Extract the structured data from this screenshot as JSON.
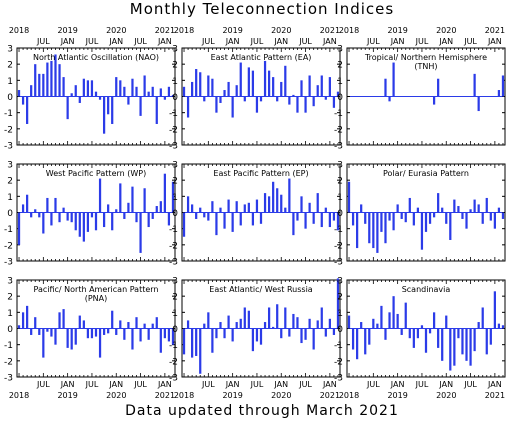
{
  "title": "Monthly Teleconnection Indices",
  "footer": "Data updated through March 2021",
  "colors": {
    "bar": "#2b3be8",
    "axis": "#000000",
    "background": "#ffffff"
  },
  "chart_data": {
    "type": "bar",
    "layout": "3x3 grid of bar charts",
    "ylim": [
      -3,
      3
    ],
    "yticks": [
      -3,
      -2,
      -1,
      0,
      1,
      2,
      3
    ],
    "month_axis": {
      "start": "2018-01",
      "end": "2021-03",
      "count": 39
    },
    "month_tick_labels": [
      "JUL",
      "JAN",
      "JUL",
      "JAN",
      "JUL",
      "JAN",
      "JUL",
      "JAN"
    ],
    "year_labels": [
      "2018",
      "2019",
      "2020",
      "2021"
    ],
    "panels": [
      {
        "name": "North Atlantic Oscillation (NAO)",
        "values": [
          0.4,
          -0.5,
          -1.7,
          0.7,
          2.0,
          1.4,
          1.4,
          2.1,
          2.2,
          2.6,
          2.0,
          1.2,
          -1.4,
          0.2,
          0.7,
          -0.4,
          1.1,
          1.0,
          1.0,
          0.3,
          -0.2,
          -2.3,
          -1.1,
          -1.7,
          1.2,
          1.0,
          0.6,
          -0.5,
          1.1,
          0.6,
          -1.2,
          1.3,
          0.3,
          0.6,
          -1.7,
          0.5,
          -0.2,
          0.6,
          0.1
        ]
      },
      {
        "name": "East Atlantic Pattern (EA)",
        "values": [
          0.6,
          -1.3,
          0.9,
          1.7,
          1.5,
          -0.3,
          1.3,
          1.1,
          -1.0,
          -0.4,
          0.4,
          0.9,
          -1.3,
          0.7,
          2.1,
          -0.3,
          1.8,
          1.6,
          -1.0,
          -0.3,
          2.2,
          1.6,
          1.2,
          -0.3,
          0.9,
          1.9,
          -0.5,
          0.1,
          -1.0,
          1.0,
          -1.0,
          1.3,
          -0.6,
          0.7,
          1.3,
          -0.2,
          1.2,
          -0.7,
          0.3
        ]
      },
      {
        "name": "Tropical/ Northern Hemisphere (TNH)",
        "values": [
          0,
          0,
          0,
          0,
          0,
          0,
          0,
          0,
          0,
          1.1,
          -0.3,
          2.1,
          0,
          0,
          0,
          0,
          0,
          0,
          0,
          0,
          0,
          -0.5,
          1.1,
          0,
          0,
          0,
          0,
          0,
          0,
          0,
          0,
          1.4,
          -0.9,
          0,
          0,
          0,
          0,
          0.4,
          1.3
        ]
      },
      {
        "name": "West Pacific Pattern (WP)",
        "values": [
          -2.0,
          0.5,
          1.1,
          -0.3,
          0.2,
          -0.3,
          -1.3,
          0.9,
          -0.8,
          0.9,
          -0.6,
          0.3,
          -0.5,
          -0.6,
          -1.1,
          -1.5,
          -1.8,
          -1.2,
          -0.3,
          -1.1,
          2.1,
          -0.9,
          0.5,
          -1.1,
          0.2,
          1.8,
          -0.4,
          0.6,
          1.6,
          -0.6,
          -2.5,
          1.5,
          -0.9,
          -0.4,
          0.4,
          0.7,
          2.4,
          -0.8,
          1.9
        ]
      },
      {
        "name": "East Pacific Pattern (EP)",
        "values": [
          -1.5,
          1.0,
          0.5,
          -0.4,
          0.3,
          -0.3,
          -0.5,
          0.7,
          -1.4,
          0.3,
          -1.0,
          0.8,
          -1.2,
          0.7,
          -0.8,
          0.5,
          0.6,
          -0.8,
          0.8,
          -0.7,
          1.2,
          1.0,
          1.9,
          1.5,
          1.1,
          0.3,
          2.1,
          -1.4,
          -0.5,
          1.0,
          -1.0,
          0.6,
          -0.7,
          1.2,
          -0.9,
          0.3,
          -0.9,
          -0.5,
          -1.1
        ]
      },
      {
        "name": "Polar/ Eurasia Pattern",
        "values": [
          1.9,
          -0.8,
          -2.2,
          0.5,
          -0.7,
          -1.9,
          -2.2,
          -2.5,
          -1.2,
          -1.9,
          -0.5,
          -1.1,
          0.5,
          -0.4,
          -0.6,
          0.9,
          -0.8,
          0.3,
          -2.3,
          -1.2,
          -0.7,
          -0.3,
          1.2,
          0.3,
          -0.7,
          -1.7,
          0.8,
          0.4,
          -0.4,
          -1.0,
          0.2,
          0.8,
          0.5,
          -0.7,
          0.9,
          -0.5,
          -1.0,
          0.3,
          -0.4
        ]
      },
      {
        "name": "Pacific/ North American Pattern (PNA)",
        "values": [
          0.2,
          1.0,
          1.4,
          -0.4,
          0.7,
          -0.4,
          -1.8,
          -0.2,
          -0.5,
          -1.0,
          1.0,
          1.2,
          -1.2,
          -1.3,
          -1.0,
          0.8,
          0.5,
          -0.6,
          -0.6,
          -0.5,
          -1.8,
          -0.4,
          -0.3,
          1.1,
          -0.4,
          0.5,
          -0.7,
          0.4,
          -1.3,
          0.7,
          -0.8,
          0.3,
          -0.7,
          0.3,
          0.7,
          -1.5,
          -0.6,
          -0.8,
          -1.0
        ]
      },
      {
        "name": "East Atlantic/ West Russia",
        "values": [
          -1.6,
          0.5,
          -1.8,
          -1.7,
          -2.8,
          0.3,
          1.0,
          -1.5,
          -0.6,
          0.4,
          -0.6,
          0.8,
          -0.8,
          0.4,
          0.6,
          1.3,
          1.1,
          -1.4,
          -0.8,
          -1.0,
          0.4,
          1.3,
          0.1,
          1.5,
          -0.6,
          1.3,
          -0.5,
          0.9,
          0.7,
          -0.9,
          -0.7,
          0.6,
          -1.3,
          0.5,
          1.3,
          -0.5,
          0.6,
          -0.4,
          3.1
        ]
      },
      {
        "name": "Scandinavia",
        "values": [
          0.8,
          -1.3,
          -1.9,
          0.4,
          -1.6,
          -1.0,
          0.6,
          0.3,
          1.4,
          -0.7,
          1.0,
          2.0,
          0.9,
          -0.4,
          1.6,
          -0.6,
          -1.2,
          -0.6,
          0.2,
          -1.5,
          -0.3,
          1.0,
          -1.2,
          -2.0,
          0.8,
          -2.6,
          -2.3,
          -0.6,
          -1.6,
          -2.0,
          -2.3,
          -1.4,
          0.4,
          1.3,
          -1.6,
          -1.0,
          2.3,
          0.3,
          0.2
        ]
      }
    ]
  }
}
